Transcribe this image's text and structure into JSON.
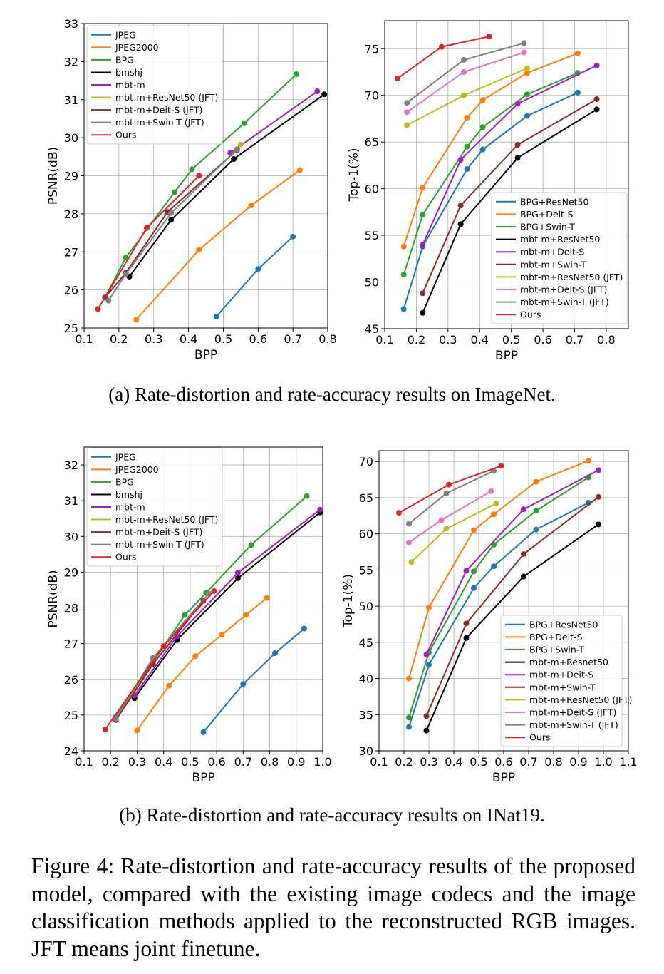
{
  "captions": {
    "a": "(a) Rate-distortion and rate-accuracy results on ImageNet.",
    "b": "(b) Rate-distortion and rate-accuracy results on INat19.",
    "figure": "Figure 4: Rate-distortion and rate-accuracy results of the proposed model, compared with the existing image codecs and the image classification methods applied to the reconstructed RGB images. JFT means joint finetune."
  },
  "chart_data": [
    {
      "id": "a-left",
      "type": "line",
      "xlabel": "BPP",
      "ylabel": "PSNR(dB)",
      "xlim": [
        0.1,
        0.8
      ],
      "ylim": [
        25,
        33
      ],
      "xticks": [
        "0.1",
        "0.2",
        "0.3",
        "0.4",
        "0.5",
        "0.6",
        "0.7",
        "0.8"
      ],
      "yticks": [
        "25",
        "26",
        "27",
        "28",
        "29",
        "30",
        "31",
        "32",
        "33"
      ],
      "grid": true,
      "legend": "top-left",
      "series": [
        {
          "name": "JPEG",
          "color": "#1f77b4",
          "markers": true,
          "x": [
            0.48,
            0.6,
            0.7
          ],
          "y": [
            25.3,
            26.55,
            27.4
          ]
        },
        {
          "name": "JPEG2000",
          "color": "#ff7f0e",
          "markers": true,
          "x": [
            0.25,
            0.43,
            0.58,
            0.72
          ],
          "y": [
            25.22,
            27.05,
            28.22,
            29.15
          ]
        },
        {
          "name": "BPG",
          "color": "#2ca02c",
          "markers": true,
          "x": [
            0.16,
            0.22,
            0.36,
            0.41,
            0.56,
            0.71
          ],
          "y": [
            25.8,
            26.85,
            28.57,
            29.17,
            30.38,
            31.67
          ]
        },
        {
          "name": "bmshj",
          "color": "#000000",
          "markers": true,
          "x": [
            0.23,
            0.35,
            0.53,
            0.79
          ],
          "y": [
            26.35,
            27.84,
            29.44,
            31.14
          ]
        },
        {
          "name": "mbt-m",
          "color": "#9f1fbf",
          "markers": true,
          "x": [
            0.52,
            0.77
          ],
          "y": [
            29.6,
            31.22
          ]
        },
        {
          "name": "mbt-m+ResNet50 (JFT)",
          "color": "#bcbd22",
          "markers": true,
          "x": [
            0.55
          ],
          "y": [
            29.82
          ]
        },
        {
          "name": "mbt-m+Deit-S (JFT)",
          "color": "#8c2d2d",
          "markers": true,
          "x": [
            0.16,
            0.22,
            0.34,
            0.54
          ],
          "y": [
            25.8,
            26.45,
            28.05,
            29.68
          ]
        },
        {
          "name": "mbt-m+Swin-T (JFT)",
          "color": "#7f7f7f",
          "markers": true,
          "x": [
            0.17,
            0.22,
            0.35,
            0.54
          ],
          "y": [
            25.72,
            26.42,
            28.02,
            29.7
          ]
        },
        {
          "name": "Ours",
          "color": "#d62728",
          "markers": true,
          "x": [
            0.14,
            0.28,
            0.43
          ],
          "y": [
            25.5,
            27.63,
            29.0
          ]
        }
      ]
    },
    {
      "id": "a-right",
      "type": "line",
      "xlabel": "BPP",
      "ylabel": "Top-1(%)",
      "xlim": [
        0.1,
        0.87
      ],
      "ylim": [
        45,
        78
      ],
      "xticks": [
        "0.1",
        "0.2",
        "0.3",
        "0.4",
        "0.5",
        "0.6",
        "0.7",
        "0.8"
      ],
      "yticks": [
        "45",
        "50",
        "55",
        "60",
        "65",
        "70",
        "75"
      ],
      "grid": true,
      "legend": "bottom-right",
      "series": [
        {
          "name": "BPG+ResNet50",
          "color": "#1f77b4",
          "markers": true,
          "x": [
            0.16,
            0.22,
            0.36,
            0.41,
            0.55,
            0.71
          ],
          "y": [
            47.1,
            53.8,
            62.1,
            64.2,
            67.8,
            70.3
          ]
        },
        {
          "name": "BPG+Deit-S",
          "color": "#ff7f0e",
          "markers": true,
          "x": [
            0.16,
            0.22,
            0.36,
            0.41,
            0.55,
            0.71
          ],
          "y": [
            53.8,
            60.1,
            67.6,
            69.5,
            72.4,
            74.5
          ]
        },
        {
          "name": "BPG+Swin-T",
          "color": "#2ca02c",
          "markers": true,
          "x": [
            0.16,
            0.22,
            0.36,
            0.41,
            0.55,
            0.71
          ],
          "y": [
            50.8,
            57.2,
            64.5,
            66.6,
            70.1,
            72.4
          ]
        },
        {
          "name": "mbt-m+ResNet50",
          "color": "#000000",
          "markers": true,
          "x": [
            0.22,
            0.34,
            0.52,
            0.77
          ],
          "y": [
            46.7,
            56.2,
            63.3,
            68.5
          ]
        },
        {
          "name": "mbt-m+Deit-S",
          "color": "#9f1fbf",
          "markers": true,
          "x": [
            0.22,
            0.34,
            0.52,
            0.77
          ],
          "y": [
            54.0,
            63.1,
            69.1,
            73.2
          ]
        },
        {
          "name": "mbt-m+Swin-T",
          "color": "#8c2d2d",
          "markers": true,
          "x": [
            0.22,
            0.34,
            0.52,
            0.77
          ],
          "y": [
            48.8,
            58.2,
            64.7,
            69.6
          ]
        },
        {
          "name": "mbt-m+ResNet50 (JFT)",
          "color": "#bcbd22",
          "markers": true,
          "x": [
            0.17,
            0.35,
            0.55
          ],
          "y": [
            66.8,
            70.0,
            72.9
          ]
        },
        {
          "name": "mbt-m+Deit-S (JFT)",
          "color": "#e377c2",
          "markers": true,
          "x": [
            0.17,
            0.35,
            0.54
          ],
          "y": [
            68.2,
            72.5,
            74.6
          ]
        },
        {
          "name": "mbt-m+Swin-T (JFT)",
          "color": "#7f7f7f",
          "markers": true,
          "x": [
            0.17,
            0.35,
            0.54
          ],
          "y": [
            69.2,
            73.8,
            75.6
          ]
        },
        {
          "name": "Ours",
          "color": "#d62728",
          "markers": true,
          "x": [
            0.14,
            0.28,
            0.43
          ],
          "y": [
            71.8,
            75.2,
            76.3
          ]
        }
      ]
    },
    {
      "id": "b-left",
      "type": "line",
      "xlabel": "BPP",
      "ylabel": "PSNR(dB)",
      "xlim": [
        0.1,
        1.0
      ],
      "ylim": [
        24,
        32.5
      ],
      "xticks": [
        "0.1",
        "0.2",
        "0.3",
        "0.4",
        "0.5",
        "0.6",
        "0.7",
        "0.8",
        "0.9",
        "1.0"
      ],
      "yticks": [
        "24",
        "25",
        "26",
        "27",
        "28",
        "29",
        "30",
        "31",
        "32"
      ],
      "grid": true,
      "legend": "top-left",
      "series": [
        {
          "name": "JPEG",
          "color": "#1f77b4",
          "markers": true,
          "x": [
            0.55,
            0.7,
            0.82,
            0.93
          ],
          "y": [
            24.52,
            25.87,
            26.73,
            27.42
          ]
        },
        {
          "name": "JPEG2000",
          "color": "#ff7f0e",
          "markers": true,
          "x": [
            0.3,
            0.42,
            0.52,
            0.62,
            0.71,
            0.79
          ],
          "y": [
            24.57,
            25.82,
            26.65,
            27.25,
            27.8,
            28.28
          ]
        },
        {
          "name": "BPG",
          "color": "#2ca02c",
          "markers": true,
          "x": [
            0.22,
            0.48,
            0.56,
            0.73,
            0.94
          ],
          "y": [
            24.95,
            27.8,
            28.42,
            29.76,
            31.13
          ]
        },
        {
          "name": "bmshj",
          "color": "#000000",
          "markers": true,
          "x": [
            0.29,
            0.45,
            0.68,
            0.99
          ],
          "y": [
            25.47,
            27.1,
            28.83,
            30.67
          ]
        },
        {
          "name": "mbt-m",
          "color": "#9f1fbf",
          "markers": true,
          "x": [
            0.29,
            0.45,
            0.68,
            0.99
          ],
          "y": [
            25.55,
            27.2,
            28.98,
            30.75
          ]
        },
        {
          "name": "mbt-m+ResNet50 (JFT)",
          "color": "#bcbd22",
          "markers": true,
          "x": [
            0.22,
            0.36
          ],
          "y": [
            24.9,
            26.55
          ]
        },
        {
          "name": "mbt-m+Deit-S (JFT)",
          "color": "#8c2d2d",
          "markers": true,
          "x": [
            0.22,
            0.36,
            0.55
          ],
          "y": [
            24.86,
            26.43,
            28.2
          ]
        },
        {
          "name": "mbt-m+Swin-T (JFT)",
          "color": "#7f7f7f",
          "markers": true,
          "x": [
            0.22,
            0.36,
            0.57
          ],
          "y": [
            24.9,
            26.6,
            28.4
          ]
        },
        {
          "name": "Ours",
          "color": "#d62728",
          "markers": true,
          "x": [
            0.18,
            0.4,
            0.59
          ],
          "y": [
            24.6,
            26.93,
            28.47
          ]
        }
      ]
    },
    {
      "id": "b-right",
      "type": "line",
      "xlabel": "BPP",
      "ylabel": "Top-1(%)",
      "xlim": [
        0.1,
        1.1
      ],
      "ylim": [
        30,
        71.5
      ],
      "xticks": [
        "0.1",
        "0.2",
        "0.3",
        "0.4",
        "0.5",
        "0.6",
        "0.7",
        "0.8",
        "0.9",
        "1.0",
        "1.1"
      ],
      "yticks": [
        "30",
        "35",
        "40",
        "45",
        "50",
        "55",
        "60",
        "65",
        "70"
      ],
      "grid": true,
      "legend": "bottom-right",
      "series": [
        {
          "name": "BPG+ResNet50",
          "color": "#1f77b4",
          "markers": true,
          "x": [
            0.22,
            0.3,
            0.48,
            0.56,
            0.73,
            0.94
          ],
          "y": [
            33.3,
            41.9,
            52.5,
            55.5,
            60.6,
            64.3
          ]
        },
        {
          "name": "BPG+Deit-S",
          "color": "#ff7f0e",
          "markers": true,
          "x": [
            0.22,
            0.3,
            0.48,
            0.56,
            0.73,
            0.94
          ],
          "y": [
            40.0,
            49.8,
            60.5,
            62.7,
            67.2,
            70.1
          ]
        },
        {
          "name": "BPG+Swin-T",
          "color": "#2ca02c",
          "markers": true,
          "x": [
            0.22,
            0.3,
            0.48,
            0.56,
            0.73,
            0.94
          ],
          "y": [
            34.6,
            43.6,
            54.8,
            58.5,
            63.2,
            67.8
          ]
        },
        {
          "name": "mbt-m+Resnet50",
          "color": "#000000",
          "markers": true,
          "x": [
            0.29,
            0.45,
            0.68,
            0.98
          ],
          "y": [
            32.8,
            45.6,
            54.1,
            61.3
          ]
        },
        {
          "name": "mbt-m+Deit-S",
          "color": "#9f1fbf",
          "markers": true,
          "x": [
            0.29,
            0.45,
            0.68,
            0.98
          ],
          "y": [
            43.3,
            54.9,
            63.4,
            68.8
          ]
        },
        {
          "name": "mbt-m+Swin-T",
          "color": "#8c2d2d",
          "markers": true,
          "x": [
            0.29,
            0.45,
            0.68,
            0.98
          ],
          "y": [
            34.8,
            47.6,
            57.2,
            65.1
          ]
        },
        {
          "name": "mbt-m+ResNet50 (JFT)",
          "color": "#bcbd22",
          "markers": true,
          "x": [
            0.23,
            0.37,
            0.57
          ],
          "y": [
            56.1,
            60.7,
            64.2
          ]
        },
        {
          "name": "mbt-m+Deit-S (JFT)",
          "color": "#e377c2",
          "markers": true,
          "x": [
            0.22,
            0.35,
            0.55
          ],
          "y": [
            58.8,
            61.9,
            65.9
          ]
        },
        {
          "name": "mbt-m+Swin-T (JFT)",
          "color": "#7f7f7f",
          "markers": true,
          "x": [
            0.22,
            0.37,
            0.56
          ],
          "y": [
            61.4,
            65.6,
            68.7
          ]
        },
        {
          "name": "Ours",
          "color": "#d62728",
          "markers": true,
          "x": [
            0.18,
            0.38,
            0.59
          ],
          "y": [
            62.9,
            66.8,
            69.4
          ]
        }
      ]
    }
  ]
}
